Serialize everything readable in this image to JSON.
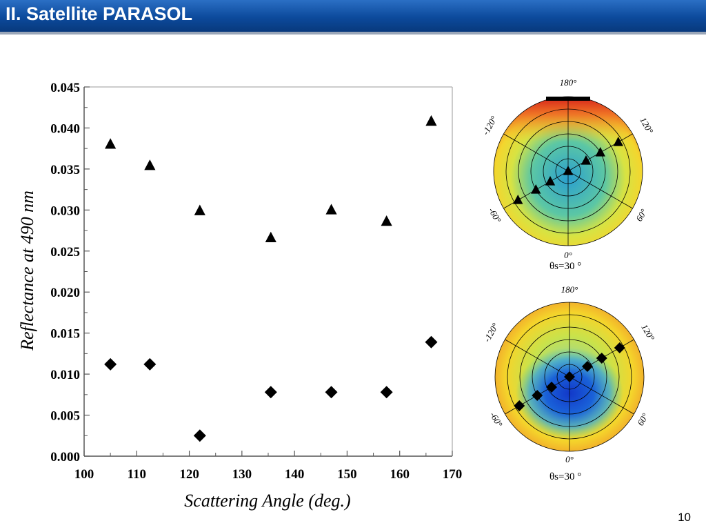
{
  "slide": {
    "title": "II. Satellite PARASOL",
    "page_number": "10"
  },
  "chart_data": [
    {
      "type": "scatter",
      "xlabel": "Scattering Angle (deg.)",
      "ylabel": "Reflectance at 490 nm",
      "xlim": [
        100,
        170
      ],
      "ylim": [
        0.0,
        0.045
      ],
      "xticks": [
        "100",
        "110",
        "120",
        "130",
        "140",
        "150",
        "160",
        "170"
      ],
      "yticks": [
        "0.000",
        "0.005",
        "0.010",
        "0.015",
        "0.020",
        "0.025",
        "0.030",
        "0.035",
        "0.040",
        "0.045"
      ],
      "series": [
        {
          "marker": "triangle",
          "points": [
            [
              105,
              0.038
            ],
            [
              112.5,
              0.0354
            ],
            [
              122,
              0.0299
            ],
            [
              135.5,
              0.0266
            ],
            [
              147,
              0.03
            ],
            [
              157.5,
              0.0286
            ],
            [
              166,
              0.0408
            ]
          ]
        },
        {
          "marker": "diamond",
          "points": [
            [
              105,
              0.0112
            ],
            [
              112.5,
              0.0112
            ],
            [
              122,
              0.0025
            ],
            [
              135.5,
              0.0078
            ],
            [
              147,
              0.0078
            ],
            [
              157.5,
              0.0078
            ],
            [
              166,
              0.0139
            ]
          ]
        }
      ]
    }
  ],
  "polar_plots": [
    {
      "marker": "triangle",
      "angle_labels": [
        "180°",
        "120°",
        "60°",
        "0°",
        "-60°",
        "-120°"
      ],
      "sza_label": "θs=30 °"
    },
    {
      "marker": "diamond",
      "angle_labels": [
        "180°",
        "120°",
        "60°",
        "0°",
        "-60°",
        "-120°"
      ],
      "sza_label": "θs=30 °"
    }
  ]
}
